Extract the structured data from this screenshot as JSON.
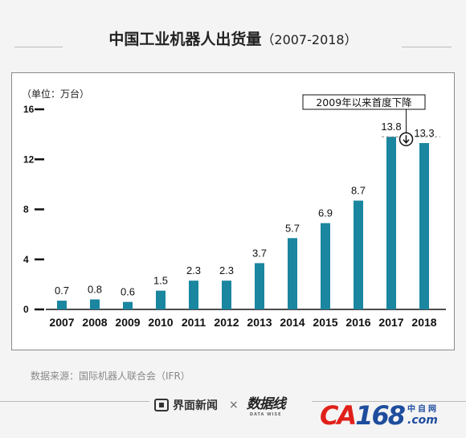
{
  "title": "中国工业机器人出货量",
  "title_range": "（2007-2018）",
  "source": "数据来源：国际机器人联合会（IFR）",
  "footer": {
    "brand_name": "界面新闻",
    "separator": "×",
    "partner_logo_text": "数据线",
    "partner_logo_sub": "DATA WISE",
    "site_logo_main": "CA",
    "site_logo_num": "168",
    "site_logo_cn": "中自网",
    "site_logo_com": ".com"
  },
  "colors": {
    "bar": "#1a86a0",
    "axis": "#111111",
    "grid": "#e6e6e6"
  },
  "chart_data": {
    "type": "bar",
    "unit_label": "（单位：万台）",
    "categories": [
      "2007",
      "2008",
      "2009",
      "2010",
      "2011",
      "2012",
      "2013",
      "2014",
      "2015",
      "2016",
      "2017",
      "2018"
    ],
    "values": [
      0.7,
      0.8,
      0.6,
      1.5,
      2.3,
      2.3,
      3.7,
      5.7,
      6.9,
      8.7,
      13.8,
      13.3
    ],
    "value_labels": [
      "0.7",
      "0.8",
      "0.6",
      "1.5",
      "2.3",
      "2.3",
      "3.7",
      "5.7",
      "6.9",
      "8.7",
      "13.8",
      "13.3"
    ],
    "yticks": [
      0,
      4,
      8,
      12,
      16
    ],
    "ylim": [
      0,
      16
    ],
    "grid": true,
    "annotation": "2009年以来首度下降",
    "annotation_from": "2017",
    "annotation_to": "2018"
  }
}
